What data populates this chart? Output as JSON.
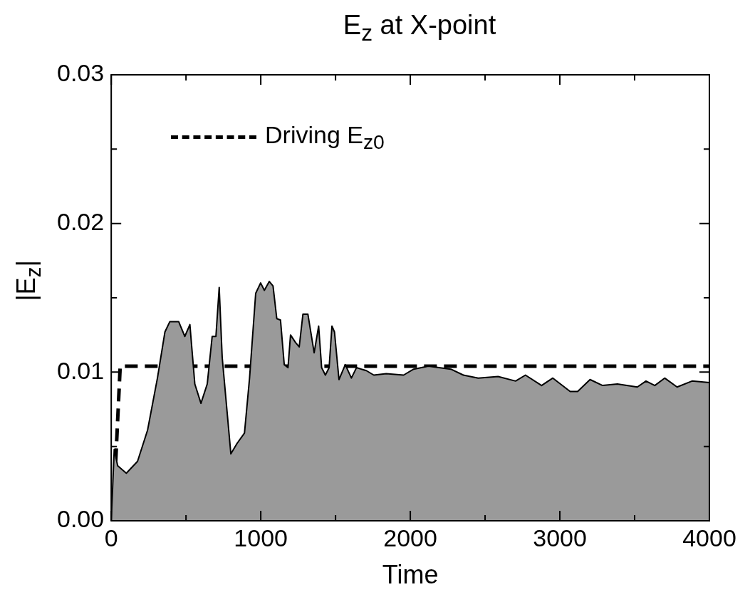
{
  "chart_data": {
    "type": "area",
    "title": "E$_{z}$ at X-point",
    "xlabel": "Time",
    "ylabel": "|E$_{z}$|",
    "xlim": [
      0,
      4000
    ],
    "ylim": [
      0,
      0.03
    ],
    "xticks": [
      0,
      {
        "value": 500,
        "label": null
      },
      1000,
      {
        "value": 1500,
        "label": null
      },
      2000,
      {
        "value": 2500,
        "label": null
      },
      3000,
      {
        "value": 3500,
        "label": null
      },
      4000
    ],
    "yticks": [
      {
        "value": 0,
        "label": "0.00"
      },
      {
        "value": 0.005,
        "label": null
      },
      {
        "value": 0.01,
        "label": "0.01"
      },
      {
        "value": 0.015,
        "label": null
      },
      {
        "value": 0.02,
        "label": "0.02"
      },
      {
        "value": 0.025,
        "label": null
      },
      {
        "value": 0.03,
        "label": "0.03"
      }
    ],
    "grid": false,
    "legend": "top left",
    "series": [
      {
        "color": "#9a9a9a",
        "x": [
          0,
          20,
          43,
          101,
          176,
          243,
          309,
          359,
          392,
          451,
          492,
          526,
          559,
          600,
          642,
          675,
          700,
          722,
          742,
          800,
          841,
          891,
          925,
          966,
          999,
          1024,
          1057,
          1082,
          1107,
          1132,
          1157,
          1182,
          1199,
          1232,
          1257,
          1282,
          1315,
          1357,
          1387,
          1407,
          1432,
          1457,
          1476,
          1493,
          1523,
          1565,
          1606,
          1640,
          1706,
          1756,
          1839,
          1955,
          2022,
          2121,
          2271,
          2355,
          2454,
          2587,
          2704,
          2770,
          2878,
          2953,
          3069,
          3119,
          3202,
          3286,
          3385,
          3518,
          3576,
          3635,
          3701,
          3784,
          3884,
          4000
        ],
        "values": [
          0,
          0.0048,
          0.0037,
          0.0032,
          0.004,
          0.0061,
          0.0096,
          0.0127,
          0.0134,
          0.0134,
          0.0124,
          0.0132,
          0.0092,
          0.0079,
          0.0092,
          0.0124,
          0.0124,
          0.0157,
          0.011,
          0.0045,
          0.0052,
          0.0059,
          0.0096,
          0.0153,
          0.016,
          0.0155,
          0.0161,
          0.0158,
          0.0136,
          0.0135,
          0.0105,
          0.0103,
          0.0125,
          0.012,
          0.0117,
          0.0139,
          0.0139,
          0.0113,
          0.0131,
          0.0103,
          0.0098,
          0.0103,
          0.0131,
          0.0127,
          0.0095,
          0.0105,
          0.0096,
          0.0103,
          0.0101,
          0.0098,
          0.0099,
          0.0098,
          0.0102,
          0.0104,
          0.0102,
          0.0098,
          0.0096,
          0.0097,
          0.0094,
          0.0098,
          0.0091,
          0.0096,
          0.0087,
          0.0087,
          0.0095,
          0.0091,
          0.0092,
          0.009,
          0.0094,
          0.0091,
          0.0096,
          0.009,
          0.0094,
          0.0093
        ]
      },
      {
        "type": "line",
        "name": "Driving E$_{z0}$",
        "color": "#000000",
        "line_style": "dashed",
        "x": [
          0,
          30,
          60,
          4000
        ],
        "values": [
          0,
          0.004,
          0.0104,
          0.0104
        ]
      }
    ]
  }
}
